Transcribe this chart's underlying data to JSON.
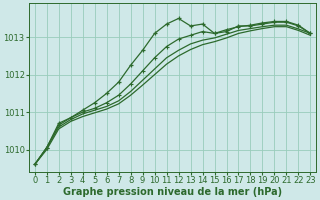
{
  "background_color": "#cfe8e8",
  "grid_color": "#99ccbb",
  "line_color": "#2d6a2d",
  "xlabel": "Graphe pression niveau de la mer (hPa)",
  "xlabel_fontsize": 7,
  "tick_fontsize": 6,
  "xlim": [
    -0.5,
    23.5
  ],
  "ylim": [
    1009.4,
    1013.9
  ],
  "yticks": [
    1010,
    1011,
    1012,
    1013
  ],
  "xticks": [
    0,
    1,
    2,
    3,
    4,
    5,
    6,
    7,
    8,
    9,
    10,
    11,
    12,
    13,
    14,
    15,
    16,
    17,
    18,
    19,
    20,
    21,
    22,
    23
  ],
  "line1_x": [
    0,
    1,
    2,
    3,
    4,
    5,
    6,
    7,
    8,
    9,
    10,
    11,
    12,
    13,
    14,
    15,
    16,
    17,
    18,
    19,
    20,
    21,
    22,
    23
  ],
  "line1_y": [
    1009.6,
    1010.05,
    1010.7,
    1010.85,
    1011.05,
    1011.25,
    1011.5,
    1011.8,
    1012.25,
    1012.65,
    1013.1,
    1013.35,
    1013.5,
    1013.3,
    1013.35,
    1013.1,
    1013.15,
    1013.3,
    1013.3,
    1013.35,
    1013.4,
    1013.4,
    1013.3,
    1013.1
  ],
  "line2_x": [
    0,
    1,
    2,
    3,
    4,
    5,
    6,
    7,
    8,
    9,
    10,
    11,
    12,
    13,
    14,
    15,
    16,
    17,
    18,
    19,
    20,
    21,
    22,
    23
  ],
  "line2_y": [
    1009.6,
    1010.05,
    1010.65,
    1010.85,
    1011.0,
    1011.1,
    1011.25,
    1011.45,
    1011.75,
    1012.1,
    1012.45,
    1012.75,
    1012.95,
    1013.05,
    1013.15,
    1013.1,
    1013.2,
    1013.28,
    1013.32,
    1013.38,
    1013.42,
    1013.42,
    1013.32,
    1013.1
  ],
  "line3_x": [
    0,
    1,
    2,
    3,
    4,
    5,
    6,
    7,
    8,
    9,
    10,
    11,
    12,
    13,
    14,
    15,
    16,
    17,
    18,
    19,
    20,
    21,
    22,
    23
  ],
  "line3_y": [
    1009.6,
    1010.05,
    1010.6,
    1010.8,
    1010.95,
    1011.05,
    1011.15,
    1011.3,
    1011.55,
    1011.85,
    1012.15,
    1012.45,
    1012.65,
    1012.82,
    1012.92,
    1012.98,
    1013.08,
    1013.18,
    1013.23,
    1013.28,
    1013.32,
    1013.32,
    1013.22,
    1013.1
  ],
  "line4_x": [
    0,
    1,
    2,
    3,
    4,
    5,
    6,
    7,
    8,
    9,
    10,
    11,
    12,
    13,
    14,
    15,
    16,
    17,
    18,
    19,
    20,
    21,
    22,
    23
  ],
  "line4_y": [
    1009.6,
    1010.0,
    1010.55,
    1010.75,
    1010.88,
    1010.98,
    1011.08,
    1011.22,
    1011.45,
    1011.72,
    1012.0,
    1012.28,
    1012.5,
    1012.67,
    1012.8,
    1012.88,
    1012.98,
    1013.1,
    1013.17,
    1013.23,
    1013.28,
    1013.28,
    1013.18,
    1013.05
  ]
}
